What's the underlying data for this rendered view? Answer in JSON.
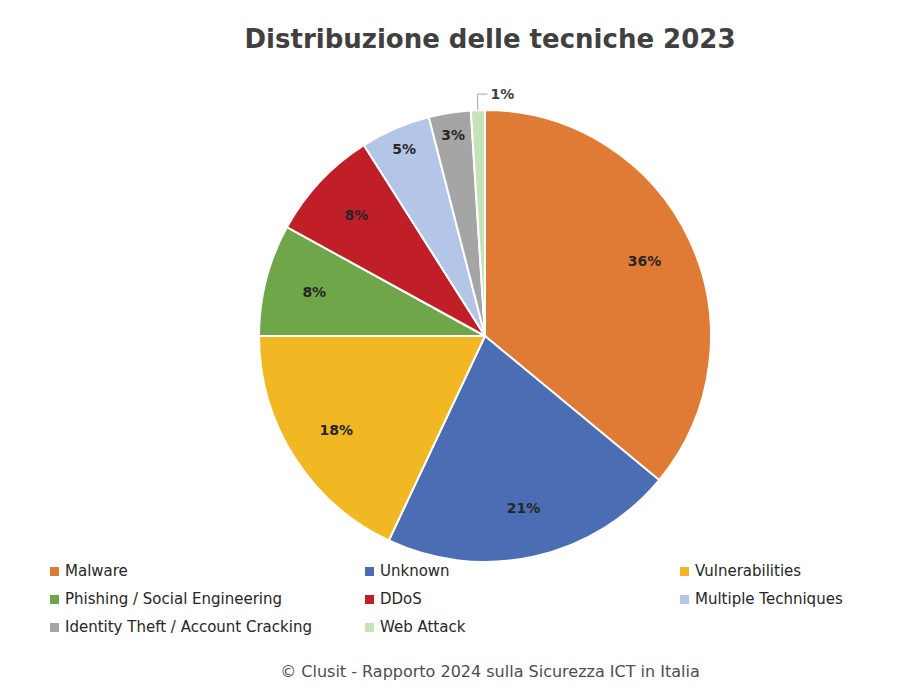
{
  "chart_data": {
    "type": "pie",
    "title": "Distribuzione delle tecniche 2023",
    "source": "© Clusit - Rapporto 2024 sulla Sicurezza ICT in Italia",
    "categories": [
      "Malware",
      "Unknown",
      "Vulnerabilities",
      "Phishing / Social Engineering",
      "DDoS",
      "Multiple Techniques",
      "Identity Theft / Account Cracking",
      "Web Attack"
    ],
    "values": [
      36,
      21,
      18,
      8,
      8,
      5,
      3,
      1
    ],
    "value_labels": [
      "36%",
      "21%",
      "18%",
      "8%",
      "8%",
      "5%",
      "3%",
      "1%"
    ],
    "colors": [
      "#e07b35",
      "#4a6db4",
      "#f2b824",
      "#6fa64a",
      "#c01f28",
      "#b4c6e7",
      "#a5a5a5",
      "#c6e3b8"
    ],
    "data_labels": true,
    "legend": "bottom"
  }
}
